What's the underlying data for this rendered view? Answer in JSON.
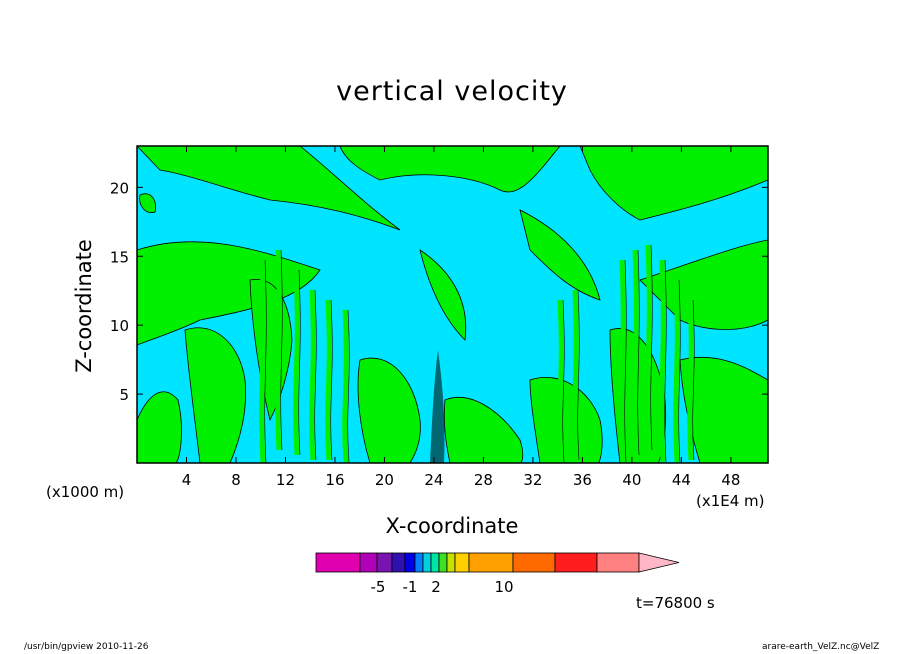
{
  "chart_data": {
    "type": "heatmap",
    "title": "vertical velocity",
    "xlabel": "X-coordinate",
    "ylabel": "Z-coordinate",
    "x_unit_left": "(x1000 m)",
    "x_unit_right": "(x1E4 m)",
    "xlim": [
      0,
      51
    ],
    "ylim": [
      0,
      23
    ],
    "x_ticks": [
      4,
      8,
      12,
      16,
      20,
      24,
      28,
      32,
      36,
      40,
      44,
      48
    ],
    "y_ticks": [
      5,
      10,
      15,
      20
    ],
    "colorbar": {
      "colors": [
        "#e000b0",
        "#b000b8",
        "#7a14b0",
        "#3010b0",
        "#0000e8",
        "#0080ff",
        "#00d0e0",
        "#00e6a0",
        "#40e020",
        "#c8e000",
        "#ffd000",
        "#ffa000",
        "#ff6a00",
        "#ff1e1e",
        "#ff8080",
        "#ffb8c8"
      ],
      "tick_labels": [
        "-5",
        "-1",
        "2",
        "10"
      ]
    },
    "background_color": "#00e5ff",
    "positive_color": "#00f000",
    "time_label": "t=76800 s"
  },
  "footer": {
    "left": "/usr/bin/gpview   2010-11-26",
    "right": "arare-earth_VelZ.nc@VelZ"
  }
}
